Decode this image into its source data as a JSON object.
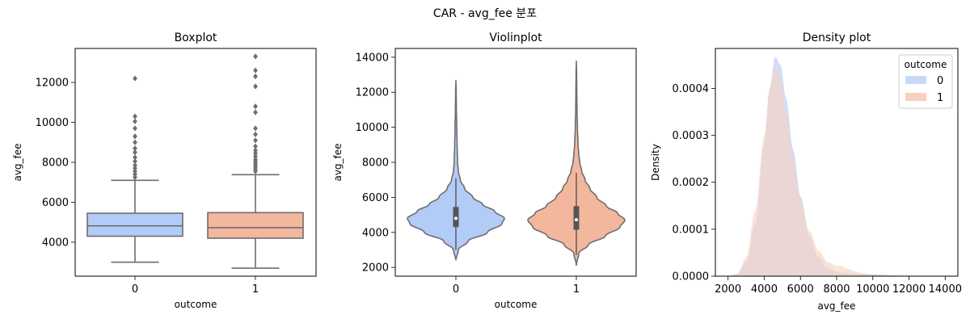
{
  "figure": {
    "suptitle": "CAR - avg_fee 분포"
  },
  "colors": {
    "group0": "#b3cbf7",
    "group1": "#f3b79e",
    "line": "#6e6e6e",
    "density0": "#c9d8f9",
    "density1": "#f9d0bd"
  },
  "chart_data": [
    {
      "type": "box",
      "title": "Boxplot",
      "xlabel": "outcome",
      "ylabel": "avg_fee",
      "categories": [
        "0",
        "1"
      ],
      "ylim": [
        2300,
        13700
      ],
      "yticks": [
        4000,
        6000,
        8000,
        10000,
        12000
      ],
      "boxes": [
        {
          "category": "0",
          "min": 3000,
          "q1": 4300,
          "median": 4820,
          "q3": 5450,
          "max": 7100,
          "outliers": [
            7250,
            7400,
            7550,
            7700,
            7850,
            8050,
            8250,
            8500,
            8700,
            9000,
            9300,
            9700,
            10050,
            10300,
            12200
          ]
        },
        {
          "category": "1",
          "min": 2700,
          "q1": 4200,
          "median": 4730,
          "q3": 5480,
          "max": 7380,
          "outliers": [
            7550,
            7650,
            7750,
            7850,
            7950,
            8050,
            8150,
            8300,
            8450,
            8600,
            8800,
            9100,
            9400,
            9700,
            10500,
            10800,
            11800,
            12300,
            12600,
            13300
          ]
        }
      ]
    },
    {
      "type": "violin",
      "title": "Violinplot",
      "xlabel": "outcome",
      "ylabel": "avg_fee",
      "categories": [
        "0",
        "1"
      ],
      "ylim": [
        1500,
        14500
      ],
      "yticks": [
        2000,
        4000,
        6000,
        8000,
        10000,
        12000,
        14000
      ],
      "violins": [
        {
          "category": "0",
          "q1": 4300,
          "median": 4800,
          "q3": 5450,
          "whisker_low": 3000,
          "whisker_high": 7100,
          "profile": [
            [
              2400,
              0.0
            ],
            [
              3000,
              0.05
            ],
            [
              3500,
              0.25
            ],
            [
              4000,
              0.65
            ],
            [
              4500,
              0.95
            ],
            [
              4800,
              1.0
            ],
            [
              5200,
              0.8
            ],
            [
              5600,
              0.55
            ],
            [
              6000,
              0.35
            ],
            [
              6500,
              0.18
            ],
            [
              7000,
              0.09
            ],
            [
              7500,
              0.05
            ],
            [
              8000,
              0.035
            ],
            [
              9000,
              0.025
            ],
            [
              10000,
              0.018
            ],
            [
              11000,
              0.01
            ],
            [
              12000,
              0.006
            ],
            [
              12700,
              0.0
            ]
          ]
        },
        {
          "category": "1",
          "q1": 4150,
          "median": 4720,
          "q3": 5500,
          "whisker_low": 2700,
          "whisker_high": 7400,
          "profile": [
            [
              2100,
              0.0
            ],
            [
              2800,
              0.05
            ],
            [
              3300,
              0.25
            ],
            [
              3800,
              0.6
            ],
            [
              4300,
              0.9
            ],
            [
              4700,
              1.0
            ],
            [
              5100,
              0.85
            ],
            [
              5500,
              0.62
            ],
            [
              6000,
              0.42
            ],
            [
              6500,
              0.28
            ],
            [
              7000,
              0.18
            ],
            [
              7500,
              0.11
            ],
            [
              8000,
              0.07
            ],
            [
              8500,
              0.05
            ],
            [
              9000,
              0.035
            ],
            [
              10000,
              0.022
            ],
            [
              11000,
              0.014
            ],
            [
              12000,
              0.01
            ],
            [
              13000,
              0.006
            ],
            [
              13800,
              0.0
            ]
          ]
        }
      ]
    },
    {
      "type": "area",
      "title": "Density plot",
      "xlabel": "avg_fee",
      "ylabel": "Density",
      "xlim": [
        1300,
        14700
      ],
      "ylim": [
        0,
        0.000485
      ],
      "xticks": [
        2000,
        4000,
        6000,
        8000,
        10000,
        12000,
        14000
      ],
      "yticks": [
        0.0,
        0.0001,
        0.0002,
        0.0003,
        0.0004
      ],
      "ytick_labels": [
        "0.0000",
        "0.0001",
        "0.0002",
        "0.0003",
        "0.0004"
      ],
      "legend": {
        "title": "outcome",
        "placement": "top-right"
      },
      "series": [
        {
          "name": "0",
          "x": [
            2000,
            2500,
            3000,
            3500,
            4000,
            4300,
            4600,
            4900,
            5200,
            5600,
            6000,
            6500,
            7000,
            7500,
            8000,
            8500,
            9000,
            9500,
            10000,
            10500,
            11000,
            12000,
            13000,
            14000
          ],
          "y": [
            0.0,
            4e-06,
            3e-05,
            0.00011,
            0.00028,
            0.0004,
            0.000468,
            0.00045,
            0.00038,
            0.00027,
            0.00017,
            8.5e-05,
            4e-05,
            1.8e-05,
            9.5e-06,
            7e-06,
            5e-06,
            4.5e-06,
            4e-06,
            3e-06,
            1.5e-06,
            5e-07,
            2e-07,
            0.0
          ]
        },
        {
          "name": "1",
          "x": [
            2000,
            2500,
            3000,
            3500,
            4000,
            4300,
            4600,
            4900,
            5200,
            5600,
            6000,
            6500,
            7000,
            7500,
            8000,
            8300,
            8600,
            9000,
            9500,
            10000,
            10500,
            11000,
            12000,
            13000,
            14000
          ],
          "y": [
            0.0,
            5e-06,
            4e-05,
            0.00014,
            0.0003,
            0.0004,
            0.000445,
            0.00042,
            0.00035,
            0.000255,
            0.000165,
            9.5e-05,
            5.5e-05,
            3e-05,
            2.2e-05,
            2.1e-05,
            1.6e-05,
            1e-05,
            6e-06,
            4e-06,
            3e-06,
            2e-06,
            1e-06,
            4e-07,
            0.0
          ]
        }
      ]
    }
  ]
}
